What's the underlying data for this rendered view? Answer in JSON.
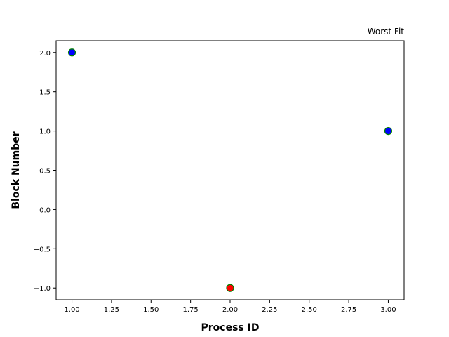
{
  "chart_data": {
    "type": "scatter",
    "title": "Worst Fit",
    "xlabel": "Process ID",
    "ylabel": "Block Number",
    "xlim": [
      0.9,
      3.1
    ],
    "ylim": [
      -1.15,
      2.15
    ],
    "grid": false,
    "x_ticks": [
      1.0,
      1.25,
      1.5,
      1.75,
      2.0,
      2.25,
      2.5,
      2.75,
      3.0
    ],
    "x_tick_labels": [
      "1.00",
      "1.25",
      "1.50",
      "1.75",
      "2.00",
      "2.25",
      "2.50",
      "2.75",
      "3.00"
    ],
    "y_ticks": [
      -1.0,
      -0.5,
      0.0,
      0.5,
      1.0,
      1.5,
      2.0
    ],
    "y_tick_labels": [
      "−1.0",
      "−0.5",
      "0.0",
      "0.5",
      "1.0",
      "1.5",
      "2.0"
    ],
    "points": [
      {
        "x": 1,
        "y": 2,
        "color": "#0000ff",
        "edge_color": "#008000"
      },
      {
        "x": 2,
        "y": -1,
        "color": "#ff0000",
        "edge_color": "#008000"
      },
      {
        "x": 3,
        "y": 1,
        "color": "#0000ff",
        "edge_color": "#008000"
      }
    ]
  }
}
